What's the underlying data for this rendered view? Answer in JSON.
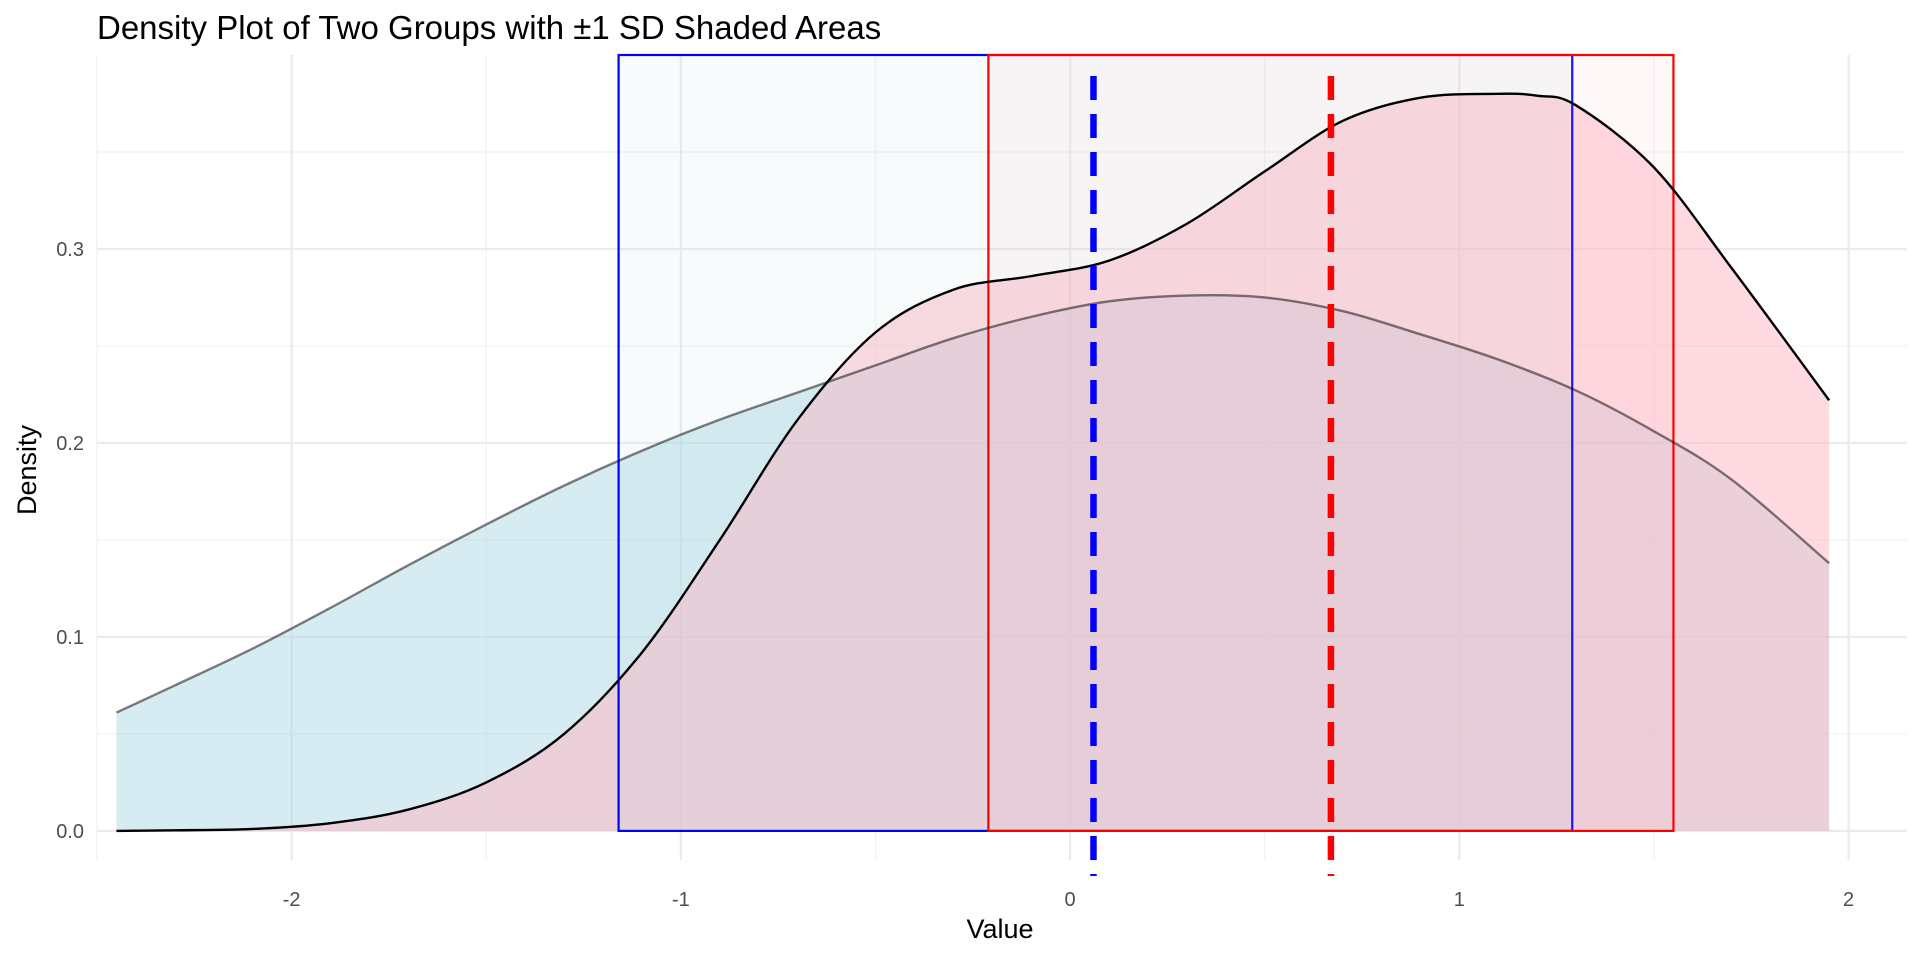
{
  "chart_data": {
    "type": "area",
    "title": "Density Plot of Two Groups with ±1 SD Shaded Areas",
    "xlabel": "Value",
    "ylabel": "Density",
    "xlim": [
      -2.5,
      2.15
    ],
    "ylim": [
      -0.015,
      0.4
    ],
    "x_ticks": [
      -2,
      -1,
      0,
      1,
      2
    ],
    "x_tick_labels": [
      "-2",
      "-1",
      "0",
      "1",
      "2"
    ],
    "y_ticks": [
      0.0,
      0.1,
      0.2,
      0.3
    ],
    "y_tick_labels": [
      "0.0",
      "0.1",
      "0.2",
      "0.3"
    ],
    "grid": true,
    "legend": "none",
    "series": [
      {
        "fill": "#add8e6",
        "fill_opacity": 0.5,
        "line_color": "#000000",
        "line_opacity": 0.5,
        "x": [
          -2.45,
          -2.3,
          -2.1,
          -1.9,
          -1.7,
          -1.5,
          -1.3,
          -1.1,
          -0.9,
          -0.7,
          -0.5,
          -0.3,
          -0.1,
          0.1,
          0.3,
          0.5,
          0.7,
          0.9,
          1.1,
          1.3,
          1.5,
          1.7,
          1.95
        ],
        "y": [
          0.061,
          0.075,
          0.094,
          0.115,
          0.137,
          0.158,
          0.178,
          0.196,
          0.212,
          0.226,
          0.24,
          0.254,
          0.265,
          0.273,
          0.276,
          0.275,
          0.268,
          0.256,
          0.243,
          0.227,
          0.206,
          0.181,
          0.138
        ]
      },
      {
        "fill": "#ffb6c1",
        "fill_opacity": 0.5,
        "line_color": "#000000",
        "line_opacity": 1,
        "x": [
          -2.45,
          -2.3,
          -2.1,
          -1.9,
          -1.7,
          -1.5,
          -1.3,
          -1.1,
          -0.9,
          -0.7,
          -0.5,
          -0.3,
          -0.1,
          0.1,
          0.3,
          0.5,
          0.7,
          0.9,
          1.1,
          1.2,
          1.3,
          1.5,
          1.7,
          1.95
        ],
        "y": [
          0.0,
          0.0003,
          0.001,
          0.004,
          0.011,
          0.025,
          0.05,
          0.092,
          0.15,
          0.212,
          0.257,
          0.279,
          0.286,
          0.294,
          0.313,
          0.34,
          0.366,
          0.378,
          0.38,
          0.379,
          0.374,
          0.342,
          0.29,
          0.222
        ]
      }
    ],
    "sd_bands": [
      {
        "xmin": -1.16,
        "xmax": 1.29,
        "fill": "#add8e6",
        "fill_opacity": 0.1,
        "border": "#0000ff"
      },
      {
        "xmin": -0.21,
        "xmax": 1.55,
        "fill": "#ffb6c1",
        "fill_opacity": 0.1,
        "border": "#ff0000"
      }
    ],
    "mean_lines": [
      {
        "x": 0.06,
        "color": "#0000ff",
        "dashed": true
      },
      {
        "x": 0.67,
        "color": "#ff0000",
        "dashed": true
      }
    ]
  }
}
